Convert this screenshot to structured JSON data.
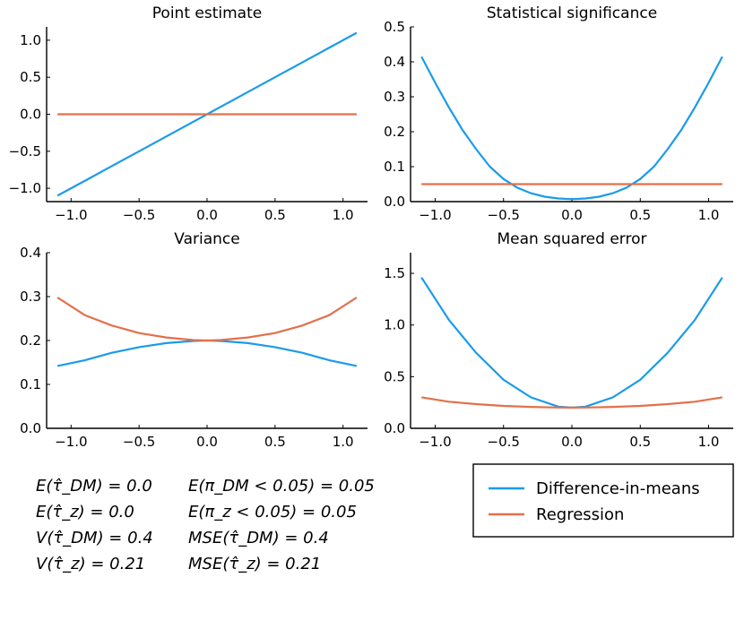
{
  "colors": {
    "difference_in_means": "#1a9bea",
    "regression": "#e3704a"
  },
  "legend": [
    {
      "label": "Difference-in-means",
      "color": "#1a9bea"
    },
    {
      "label": "Regression",
      "color": "#e3704a"
    }
  ],
  "stats": {
    "left": [
      "E(τ̂_DM) = 0.0",
      "E(τ̂_z) = 0.0",
      "V(τ̂_DM) = 0.4",
      "V(τ̂_z) = 0.21"
    ],
    "right": [
      "E(π_DM < 0.05) = 0.05",
      "E(π_z < 0.05) = 0.05",
      "MSE(τ̂_DM) = 0.4",
      "MSE(τ̂_z) = 0.21"
    ]
  },
  "chart_data": [
    {
      "type": "line",
      "title": "Point estimate",
      "x": [
        -1.1,
        -0.9,
        -0.7,
        -0.5,
        -0.3,
        -0.1,
        0.0,
        0.1,
        0.3,
        0.5,
        0.7,
        0.9,
        1.1
      ],
      "series": [
        {
          "name": "Difference-in-means",
          "values": [
            -1.1,
            -0.9,
            -0.7,
            -0.5,
            -0.3,
            -0.1,
            0.0,
            0.1,
            0.3,
            0.5,
            0.7,
            0.9,
            1.1
          ]
        },
        {
          "name": "Regression",
          "values": [
            0,
            0,
            0,
            0,
            0,
            0,
            0,
            0,
            0,
            0,
            0,
            0,
            0
          ]
        }
      ],
      "xlim": [
        -1.18,
        1.18
      ],
      "ylim": [
        -1.18,
        1.18
      ],
      "xticks": [
        -1.0,
        -0.5,
        0.0,
        0.5,
        1.0
      ],
      "xtick_labels": [
        "−1.0",
        "−0.5",
        "0.0",
        "0.5",
        "1.0"
      ],
      "yticks": [
        -1.0,
        -0.5,
        0.0,
        0.5,
        1.0
      ],
      "ytick_labels": [
        "−1.0",
        "−0.5",
        "0.0",
        "0.5",
        "1.0"
      ]
    },
    {
      "type": "line",
      "title": "Statistical significance",
      "x": [
        -1.1,
        -1.0,
        -0.9,
        -0.8,
        -0.7,
        -0.6,
        -0.5,
        -0.4,
        -0.3,
        -0.2,
        -0.1,
        0.0,
        0.1,
        0.2,
        0.3,
        0.4,
        0.5,
        0.6,
        0.7,
        0.8,
        0.9,
        1.0,
        1.1
      ],
      "series": [
        {
          "name": "Difference-in-means",
          "values": [
            0.415,
            0.34,
            0.27,
            0.205,
            0.15,
            0.1,
            0.065,
            0.04,
            0.024,
            0.014,
            0.009,
            0.007,
            0.009,
            0.014,
            0.024,
            0.04,
            0.065,
            0.1,
            0.15,
            0.205,
            0.27,
            0.34,
            0.415
          ]
        },
        {
          "name": "Regression",
          "values": [
            0.05,
            0.05,
            0.05,
            0.05,
            0.05,
            0.05,
            0.05,
            0.05,
            0.05,
            0.05,
            0.05,
            0.05,
            0.05,
            0.05,
            0.05,
            0.05,
            0.05,
            0.05,
            0.05,
            0.05,
            0.05,
            0.05,
            0.05
          ]
        }
      ],
      "xlim": [
        -1.18,
        1.18
      ],
      "ylim": [
        0,
        0.5
      ],
      "xticks": [
        -1.0,
        -0.5,
        0.0,
        0.5,
        1.0
      ],
      "xtick_labels": [
        "−1.0",
        "−0.5",
        "0.0",
        "0.5",
        "1.0"
      ],
      "yticks": [
        0,
        0.1,
        0.2,
        0.3,
        0.4,
        0.5
      ],
      "ytick_labels": [
        "0.0",
        "0.1",
        "0.2",
        "0.3",
        "0.4",
        "0.5"
      ]
    },
    {
      "type": "line",
      "title": "Variance",
      "x": [
        -1.1,
        -0.9,
        -0.7,
        -0.5,
        -0.3,
        -0.1,
        0.0,
        0.1,
        0.3,
        0.5,
        0.7,
        0.9,
        1.1
      ],
      "series": [
        {
          "name": "Difference-in-means",
          "values": [
            0.142,
            0.155,
            0.172,
            0.185,
            0.194,
            0.199,
            0.2,
            0.199,
            0.194,
            0.185,
            0.172,
            0.155,
            0.142
          ]
        },
        {
          "name": "Regression",
          "values": [
            0.298,
            0.258,
            0.234,
            0.217,
            0.207,
            0.201,
            0.2,
            0.201,
            0.207,
            0.217,
            0.234,
            0.258,
            0.298
          ]
        }
      ],
      "xlim": [
        -1.18,
        1.18
      ],
      "ylim": [
        0,
        0.4
      ],
      "xticks": [
        -1.0,
        -0.5,
        0.0,
        0.5,
        1.0
      ],
      "xtick_labels": [
        "−1.0",
        "−0.5",
        "0.0",
        "0.5",
        "1.0"
      ],
      "yticks": [
        0,
        0.1,
        0.2,
        0.3,
        0.4
      ],
      "ytick_labels": [
        "0.0",
        "0.1",
        "0.2",
        "0.3",
        "0.4"
      ]
    },
    {
      "type": "line",
      "title": "Mean squared error",
      "x": [
        -1.1,
        -0.9,
        -0.7,
        -0.5,
        -0.3,
        -0.1,
        0.0,
        0.1,
        0.3,
        0.5,
        0.7,
        0.9,
        1.1
      ],
      "series": [
        {
          "name": "Difference-in-means",
          "values": [
            1.46,
            1.05,
            0.73,
            0.47,
            0.3,
            0.21,
            0.2,
            0.21,
            0.3,
            0.47,
            0.73,
            1.05,
            1.46
          ]
        },
        {
          "name": "Regression",
          "values": [
            0.3,
            0.258,
            0.234,
            0.217,
            0.207,
            0.201,
            0.2,
            0.201,
            0.207,
            0.217,
            0.234,
            0.258,
            0.3
          ]
        }
      ],
      "xlim": [
        -1.18,
        1.18
      ],
      "ylim": [
        0,
        1.7
      ],
      "xticks": [
        -1.0,
        -0.5,
        0.0,
        0.5,
        1.0
      ],
      "xtick_labels": [
        "−1.0",
        "−0.5",
        "0.0",
        "0.5",
        "1.0"
      ],
      "yticks": [
        0,
        0.5,
        1.0,
        1.5
      ],
      "ytick_labels": [
        "0.0",
        "0.5",
        "1.0",
        "1.5"
      ]
    }
  ]
}
